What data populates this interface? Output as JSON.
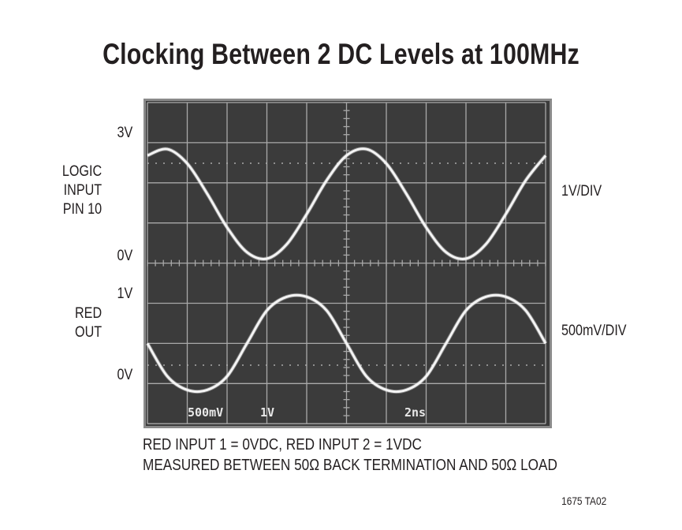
{
  "title": "Clocking Between 2 DC Levels at 100MHz",
  "left_labels": {
    "top_3v": "3V",
    "logic_input": [
      "LOGIC",
      "INPUT",
      "PIN 10"
    ],
    "top_0v": "0V",
    "bottom_1v": "1V",
    "red_out": [
      "RED",
      "OUT"
    ],
    "bottom_0v": "0V"
  },
  "right_labels": {
    "top_scale": "1V/DIV",
    "bottom_scale": "500mV/DIV"
  },
  "scope_readout": {
    "ch_bottom": "500mV",
    "ch_top": "1V",
    "timebase": "2ns"
  },
  "notes": [
    "RED INPUT 1 = 0VDC, RED INPUT 2 = 1VDC",
    "MEASURED BETWEEN 50Ω BACK TERMINATION AND 50Ω LOAD"
  ],
  "figure_id": "1675 TA02",
  "chart_data": {
    "type": "line",
    "title": "Clocking Between 2 DC Levels at 100MHz",
    "xlabel": "",
    "ylabel": "",
    "x_unit": "ns",
    "x_per_div": 2,
    "xlim": [
      0,
      20
    ],
    "grid": true,
    "x": [
      0,
      1,
      2,
      3,
      4,
      5,
      6,
      7,
      8,
      9,
      10,
      11,
      12,
      13,
      14,
      15,
      16,
      17,
      18,
      19,
      20
    ],
    "series": [
      {
        "name": "LOGIC INPUT PIN 10",
        "scale": "1V/DIV",
        "ylim": [
          -1,
          4
        ],
        "values": [
          2.68,
          2.84,
          2.48,
          1.73,
          0.89,
          0.27,
          0.11,
          0.47,
          1.22,
          2.06,
          2.68,
          2.84,
          2.48,
          1.73,
          0.89,
          0.27,
          0.11,
          0.47,
          1.22,
          2.06,
          2.68
        ]
      },
      {
        "name": "RED OUT",
        "scale": "500mV/DIV",
        "ylim": [
          -0.5,
          2
        ],
        "values": [
          0.5,
          0.09,
          -0.08,
          -0.08,
          0.09,
          0.5,
          0.91,
          1.08,
          1.08,
          0.91,
          0.5,
          0.09,
          -0.08,
          -0.08,
          0.09,
          0.5,
          0.91,
          1.08,
          1.08,
          0.91,
          0.5
        ]
      }
    ],
    "colors": {
      "screen": "#3b3b3b",
      "trace": "#f4f4f4",
      "graticule": "#a9a9a9"
    }
  }
}
